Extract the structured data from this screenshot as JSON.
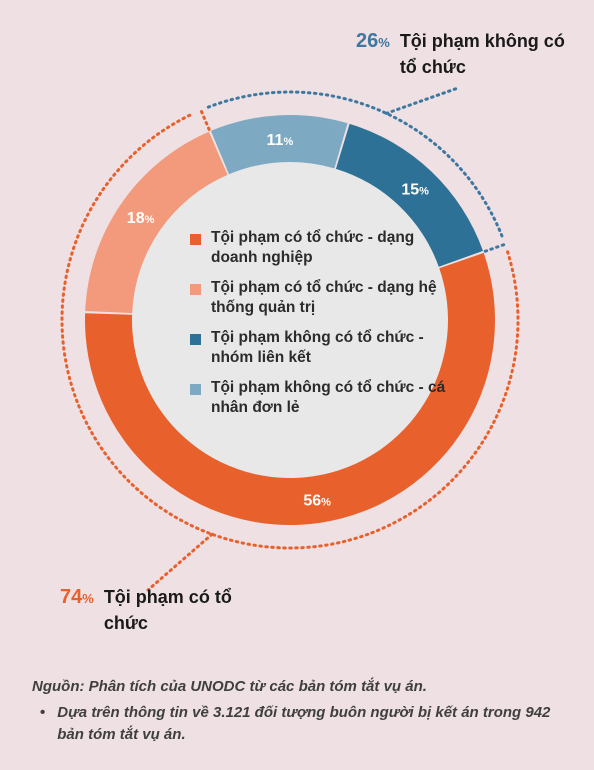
{
  "chart_data": {
    "type": "pie",
    "variant": "donut",
    "unit": "%",
    "slices": [
      {
        "label": "Tội phạm không có tổ chức - cá nhân đơn lẻ",
        "value": 11,
        "color": "#7ea9c3"
      },
      {
        "label": "Tội phạm không có tổ chức - nhóm liên kết",
        "value": 15,
        "color": "#2e7196"
      },
      {
        "label": "Tội phạm có tổ chức - dạng doanh nghiệp",
        "value": 56,
        "color": "#e8602c"
      },
      {
        "label": "Tội phạm có tổ chức - dạng hệ thống quản trị",
        "value": 18,
        "color": "#f29a7b"
      }
    ],
    "groups": [
      {
        "label": "Tội phạm không có tổ chức",
        "value": 26,
        "color": "#3e77a0"
      },
      {
        "label": "Tội phạm có tổ chức",
        "value": 74,
        "color": "#e8602c"
      }
    ]
  },
  "legend": [
    {
      "label": "Tội phạm có tổ chức - dạng doanh nghiệp",
      "color": "#e8602c"
    },
    {
      "label": "Tội phạm có tổ chức - dạng hệ thống quản trị",
      "color": "#f29a7b"
    },
    {
      "label": "Tội phạm không có tổ chức - nhóm liên kết",
      "color": "#2e7196"
    },
    {
      "label": "Tội phạm không có tổ chức - cá nhân đơn lẻ",
      "color": "#7ea9c3"
    }
  ],
  "callouts": {
    "unorganized": {
      "value": "26",
      "unit": "%",
      "label": "Tội phạm không có tổ chức"
    },
    "organized": {
      "value": "74",
      "unit": "%",
      "label": "Tội phạm có tổ chức"
    }
  },
  "source": {
    "line": "Nguồn: Phân tích của UNODC từ các bản tóm tắt vụ án.",
    "bullet": "•",
    "note": "Dựa trên thông tin về 3.121 đối tượng buôn người bị kết án trong 942 bản tóm tắt vụ án."
  }
}
